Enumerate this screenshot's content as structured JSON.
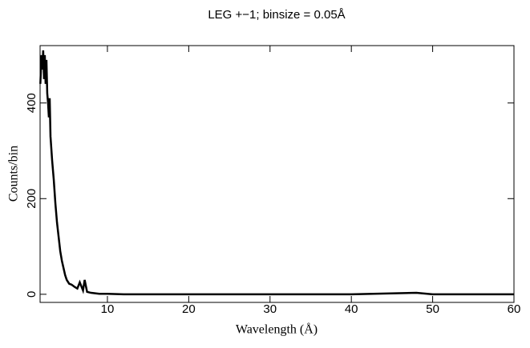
{
  "chart_data": {
    "type": "line",
    "title": "LEG +−1; binsize = 0.05Å",
    "x_label": "Wavelength (Å)",
    "y_label": "Counts/bin",
    "x": [
      1.75,
      1.9,
      2.0,
      2.1,
      2.2,
      2.3,
      2.4,
      2.5,
      2.6,
      2.7,
      2.8,
      2.9,
      3.0,
      3.2,
      3.4,
      3.6,
      3.8,
      4.0,
      4.2,
      4.4,
      4.6,
      4.8,
      5.0,
      5.3,
      5.6,
      6.0,
      6.3,
      6.6,
      7.0,
      7.2,
      7.5,
      8,
      9,
      10,
      12,
      15,
      20,
      30,
      40,
      48,
      50,
      55,
      60
    ],
    "values": [
      440,
      500,
      470,
      510,
      450,
      500,
      440,
      490,
      420,
      400,
      370,
      410,
      330,
      280,
      240,
      190,
      150,
      120,
      90,
      70,
      55,
      40,
      30,
      22,
      20,
      15,
      12,
      25,
      8,
      30,
      5,
      3,
      1,
      1,
      0,
      0,
      0,
      0,
      0,
      3,
      0,
      0,
      0
    ],
    "color": "#000000",
    "xlim": [
      1.72,
      60
    ],
    "ylim": [
      -17,
      520
    ],
    "xticks": [
      10,
      20,
      30,
      40,
      50,
      60
    ],
    "yticks": [
      0,
      200,
      400
    ]
  }
}
